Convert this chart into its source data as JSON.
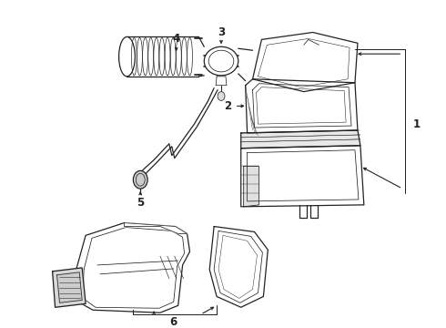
{
  "bg_color": "#ffffff",
  "line_color": "#222222",
  "fig_w": 4.9,
  "fig_h": 3.6,
  "dpi": 100
}
